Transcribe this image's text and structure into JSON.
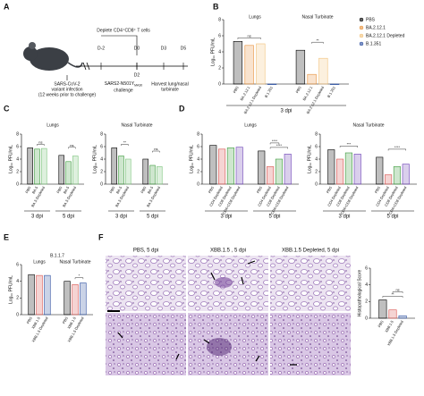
{
  "panel_labels": [
    "A",
    "B",
    "C",
    "D",
    "E",
    "F"
  ],
  "diagram": {
    "infection": [
      "SARS-CoV-2",
      "variant infection",
      "(12 weeks prior to challenge)"
    ],
    "deplete": "Deplete CD4⁺CD8⁺ T cells",
    "days": [
      "D-2",
      "D0",
      "D2",
      "D3",
      "D5"
    ],
    "challenge": [
      "SARS2-N501Y",
      "MA30",
      "challenge"
    ],
    "harvest": [
      "Harvest lung/nasal",
      "turbinate"
    ]
  },
  "histology": {
    "labels": [
      "PBS, 5 dpi",
      "XBB.1.5 , 5 dpi",
      "XBB.1.5 Depleted, 5 dpi"
    ]
  },
  "chart_data": [
    {
      "type": "bar",
      "ylabel": "Log₁₀ PFU/mL",
      "xlabel": "3 dpi",
      "category_position": "top",
      "legend": "right",
      "categories": [
        "Lungs",
        "Nasal Turbinate"
      ],
      "series": [
        {
          "name": "PBS",
          "color": "#000000",
          "values": [
            5.3,
            4.2
          ]
        },
        {
          "name": "BA.2.12.1",
          "color": "#e8913a",
          "values": [
            4.8,
            1.2
          ]
        },
        {
          "name": "BA.2.12.1 Depleted",
          "color": "#f2c27a",
          "values": [
            5.0,
            3.2
          ]
        },
        {
          "name": "B.1.351",
          "color": "#2c4fa0",
          "values": [
            0,
            0
          ]
        }
      ],
      "ylim": [
        0,
        8
      ],
      "yticks": [
        0,
        2,
        4,
        6,
        8
      ],
      "annotations": [
        {
          "text": "ns",
          "category": 0,
          "series": [
            0,
            2
          ]
        },
        {
          "text": "**",
          "category": 1,
          "series": [
            1,
            2
          ]
        }
      ]
    },
    {
      "type": "bar",
      "title": "Lungs",
      "ylabel": "Log₁₀ PFU/mL",
      "category_position": "bottom",
      "categories": [
        "3 dpi",
        "5 dpi"
      ],
      "series": [
        {
          "name": "PBS",
          "color": "#000000",
          "values": [
            5.8,
            4.6
          ]
        },
        {
          "name": "BA.5",
          "color": "#3a9a3a",
          "values": [
            5.6,
            3.6
          ]
        },
        {
          "name": "BA.5 Depleted",
          "color": "#7cc47c",
          "values": [
            5.7,
            4.5
          ]
        }
      ],
      "ylim": [
        0,
        8
      ],
      "yticks": [
        0,
        2,
        4,
        6,
        8
      ],
      "annotations": [
        {
          "text": "ns",
          "category": 0,
          "series": [
            1,
            2
          ]
        },
        {
          "text": "ns",
          "category": 1,
          "series": [
            1,
            2
          ]
        }
      ]
    },
    {
      "type": "bar",
      "title": "Nasal Turbinate",
      "ylabel": "Log₁₀ PFU/mL",
      "category_position": "bottom",
      "categories": [
        "3 dpi",
        "5 dpi"
      ],
      "series": [
        {
          "name": "PBS",
          "color": "#000000",
          "values": [
            5.8,
            4.0
          ]
        },
        {
          "name": "BA.5",
          "color": "#3a9a3a",
          "values": [
            4.5,
            3.0
          ]
        },
        {
          "name": "BA.5 Depleted",
          "color": "#7cc47c",
          "values": [
            4.0,
            2.8
          ]
        }
      ],
      "ylim": [
        0,
        8
      ],
      "yticks": [
        0,
        2,
        4,
        6,
        8
      ],
      "annotations": [
        {
          "text": "**",
          "category": 0,
          "series": [
            1,
            2
          ]
        },
        {
          "text": "ns",
          "category": 1,
          "series": [
            1,
            2
          ]
        }
      ]
    },
    {
      "type": "bar",
      "title": "Lungs",
      "ylabel": "Log₁₀ PFU/mL",
      "category_position": "bottom",
      "categories": [
        "3 dpi",
        "5 dpi"
      ],
      "series": [
        {
          "name": "PBS",
          "color": "#000000",
          "values": [
            6.2,
            5.3
          ]
        },
        {
          "name": "CD4 Depleted",
          "color": "#d9534f",
          "values": [
            5.6,
            2.8
          ]
        },
        {
          "name": "CD8 Depleted",
          "color": "#3a9a3a",
          "values": [
            5.8,
            4.0
          ]
        },
        {
          "name": "CD4+CD8 Depleted",
          "color": "#6a3fb5",
          "values": [
            5.9,
            4.8
          ]
        }
      ],
      "ylim": [
        0,
        8
      ],
      "yticks": [
        0,
        2,
        4,
        6,
        8
      ],
      "annotations": [
        {
          "text": "****",
          "category": 1,
          "series": [
            1,
            3
          ]
        },
        {
          "text": "****",
          "category": 1,
          "series": [
            1,
            2
          ]
        }
      ]
    },
    {
      "type": "bar",
      "title": "Nasal Turbinate",
      "ylabel": "Log₁₀ PFU/mL",
      "category_position": "bottom",
      "categories": [
        "3 dpi",
        "5 dpi"
      ],
      "series": [
        {
          "name": "PBS",
          "color": "#000000",
          "values": [
            5.5,
            4.3
          ]
        },
        {
          "name": "CD4 Depleted",
          "color": "#d9534f",
          "values": [
            4.0,
            1.5
          ]
        },
        {
          "name": "CD8 Depleted",
          "color": "#3a9a3a",
          "values": [
            5.0,
            2.8
          ]
        },
        {
          "name": "CD4+CD8 Depleted",
          "color": "#6a3fb5",
          "values": [
            4.8,
            3.2
          ]
        }
      ],
      "ylim": [
        0,
        8
      ],
      "yticks": [
        0,
        2,
        4,
        6,
        8
      ],
      "annotations": [
        {
          "text": "***",
          "category": 0,
          "series": [
            1,
            3
          ]
        },
        {
          "text": "****",
          "category": 1,
          "series": [
            1,
            3
          ]
        }
      ]
    },
    {
      "type": "bar",
      "title": "B.1.1.7",
      "ylabel": "Log₁₀ PFU/mL",
      "category_position": "top",
      "categories": [
        "Lungs",
        "Nasal Turbinate"
      ],
      "series": [
        {
          "name": "PBS",
          "color": "#000000",
          "values": [
            4.8,
            4.0
          ]
        },
        {
          "name": "XBB.1.5",
          "color": "#d9534f",
          "values": [
            4.7,
            3.6
          ]
        },
        {
          "name": "XBB.1.5 Depleted",
          "color": "#2c4fa0",
          "values": [
            4.7,
            3.8
          ]
        }
      ],
      "ylim": [
        0,
        6
      ],
      "yticks": [
        0,
        2,
        4,
        6
      ],
      "annotations": [
        {
          "text": "*",
          "category": 1,
          "series": [
            1,
            2
          ]
        }
      ]
    },
    {
      "type": "bar",
      "ylabel": "Histopathological Score",
      "category_position": "bottom",
      "categories": [
        null
      ],
      "series": [
        {
          "name": "PBS",
          "color": "#000000",
          "values": [
            2.2
          ]
        },
        {
          "name": "XBB.1.5",
          "color": "#d9534f",
          "values": [
            1.0
          ]
        },
        {
          "name": "XBB.1.5 Depleted",
          "color": "#2c4fa0",
          "values": [
            0.3
          ]
        }
      ],
      "ylim": [
        0,
        6
      ],
      "yticks": [
        0,
        2,
        4,
        6
      ],
      "annotations": [
        {
          "text": "**",
          "category": 0,
          "series": [
            0,
            2
          ]
        },
        {
          "text": "ns",
          "category": 0,
          "series": [
            1,
            2
          ]
        }
      ]
    }
  ]
}
